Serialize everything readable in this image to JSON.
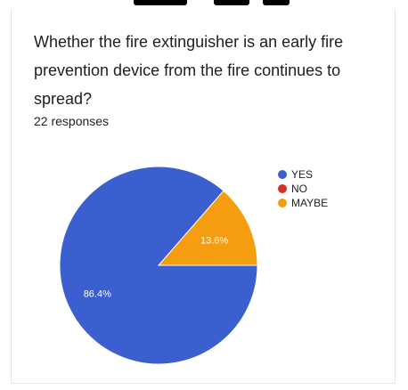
{
  "form": {
    "question": "Whether the fire extinguisher is an early fire prevention device from the fire continues to spread?",
    "responses": "22 responses"
  },
  "colors": {
    "yes": "#3b5fcf",
    "no": "#d93025",
    "maybe": "#f59d0e"
  },
  "chart_data": {
    "type": "pie",
    "categories": [
      "YES",
      "NO",
      "MAYBE"
    ],
    "values": [
      86.4,
      0,
      13.6
    ],
    "data_labels": [
      "86.4%",
      "",
      "13.6%"
    ],
    "colors": [
      "#3b5fcf",
      "#d93025",
      "#f59d0e"
    ],
    "legend_position": "right"
  }
}
